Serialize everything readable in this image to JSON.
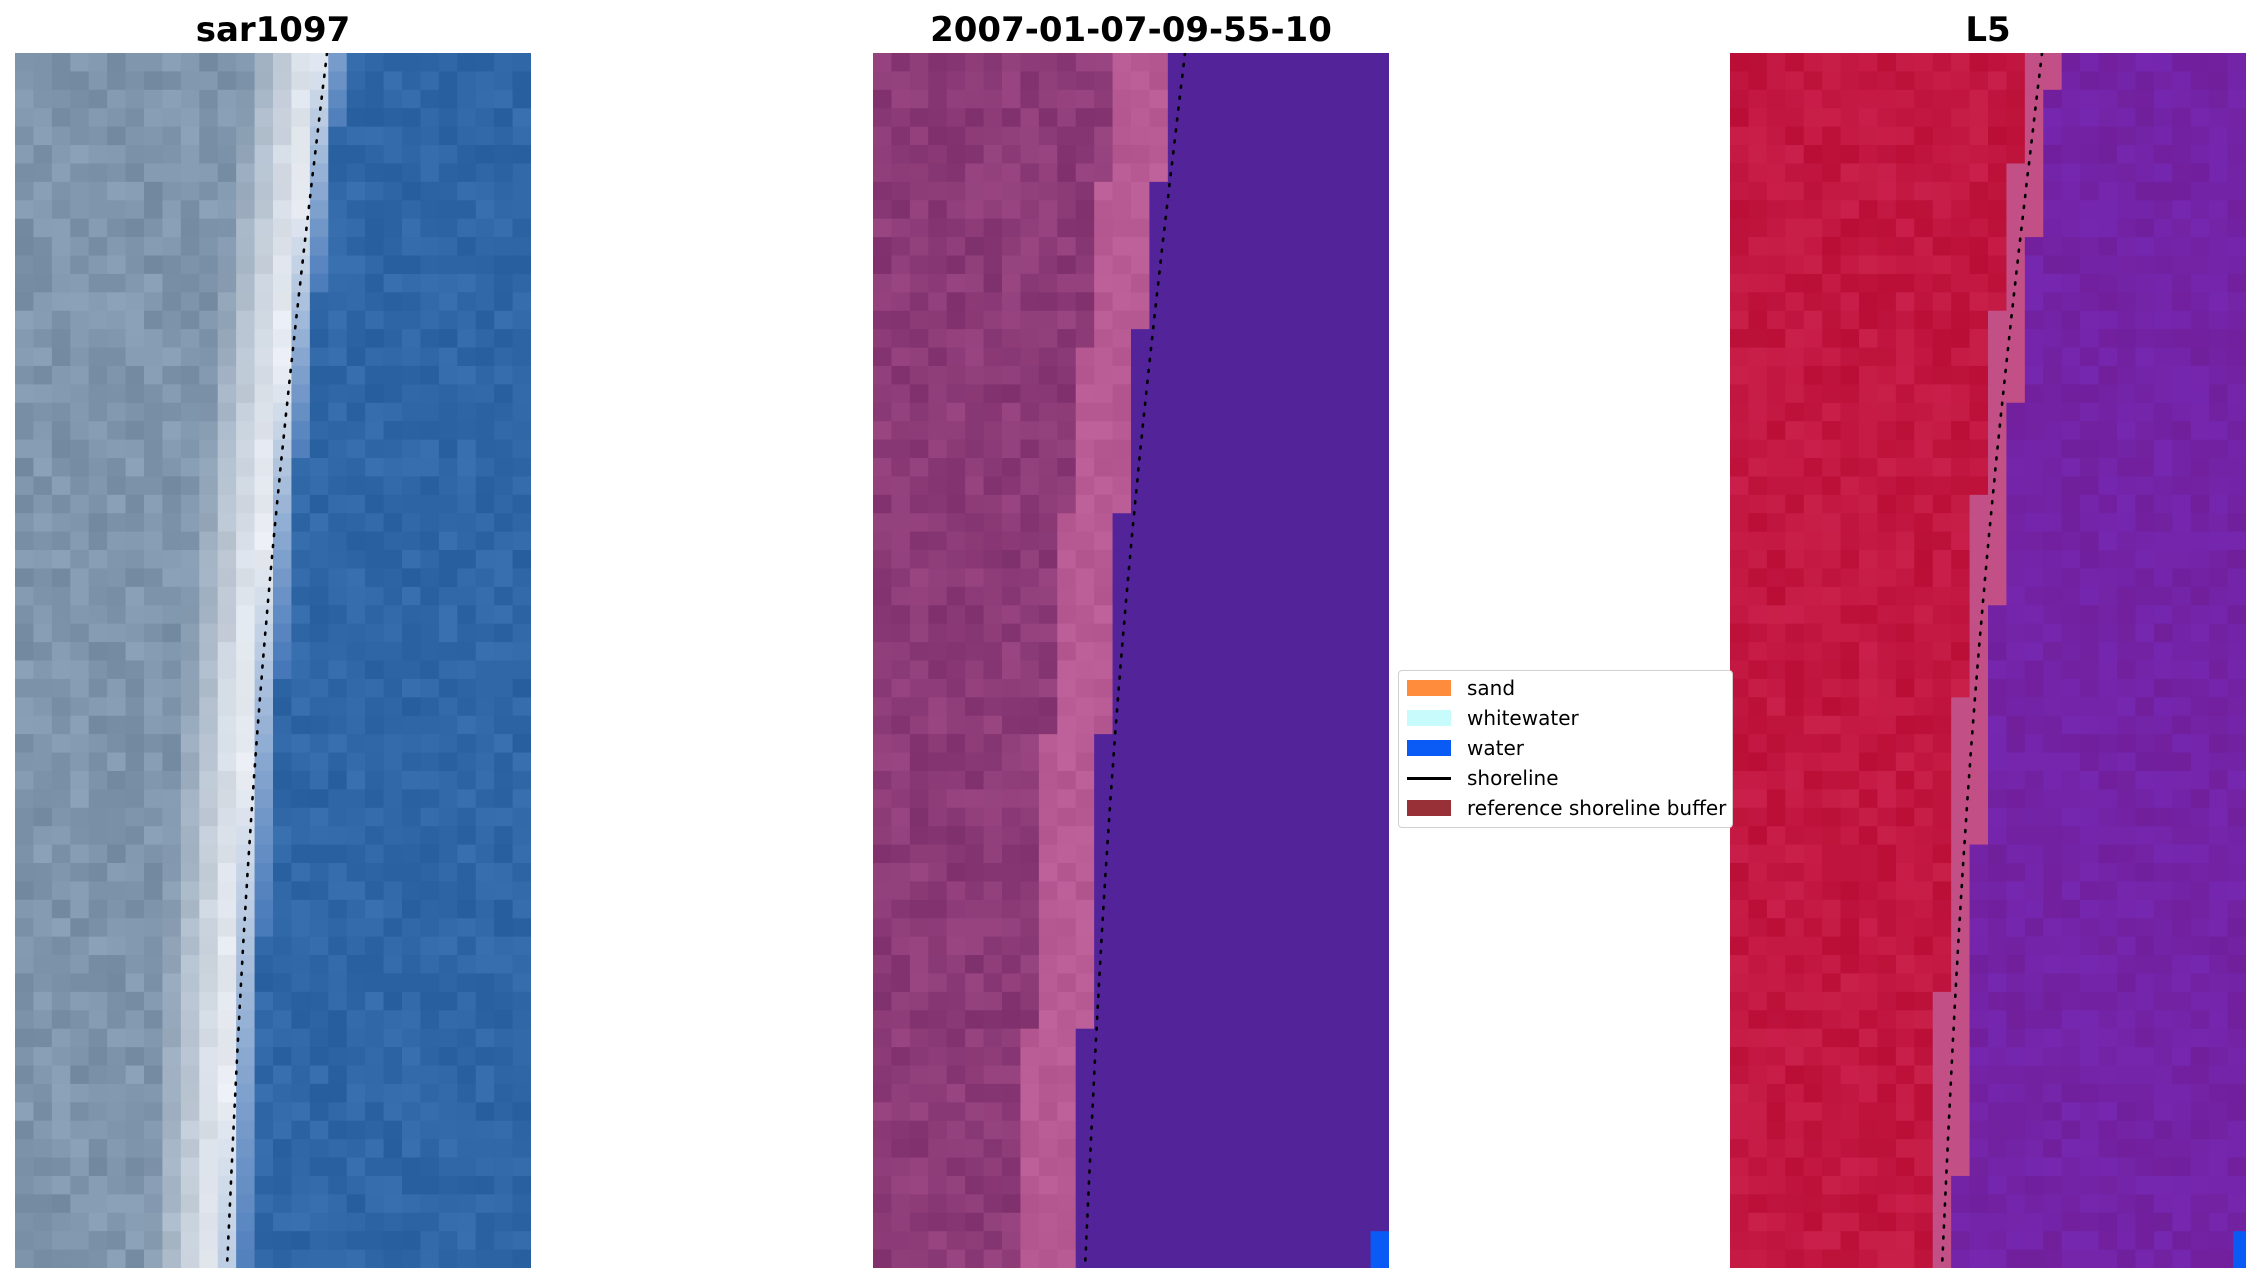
{
  "panels": [
    {
      "title": "sar1097"
    },
    {
      "title": "2007-01-07-09-55-10"
    },
    {
      "title": "L5"
    }
  ],
  "legend": {
    "items": [
      {
        "label": "sand",
        "type": "patch",
        "color": "#ff8c3c"
      },
      {
        "label": "whitewater",
        "type": "patch",
        "color": "#c8fcfc"
      },
      {
        "label": "water",
        "type": "patch",
        "color": "#0a5af6"
      },
      {
        "label": "shoreline",
        "type": "line",
        "color": "#000000"
      },
      {
        "label": "reference shoreline buffer",
        "type": "patch",
        "color": "#983038"
      }
    ]
  },
  "colors": {
    "rgb_water": "#3067a6",
    "rgb_whitewater": "#e8ecf2",
    "rgb_land": "#7f95ac",
    "class_land": "#7b2f6c",
    "class_sand_buffer": "#b85a94",
    "class_water": "#53239a",
    "index_land": "#c0143c",
    "index_transition": "#c24f86",
    "index_water": "#7a28a4"
  }
}
